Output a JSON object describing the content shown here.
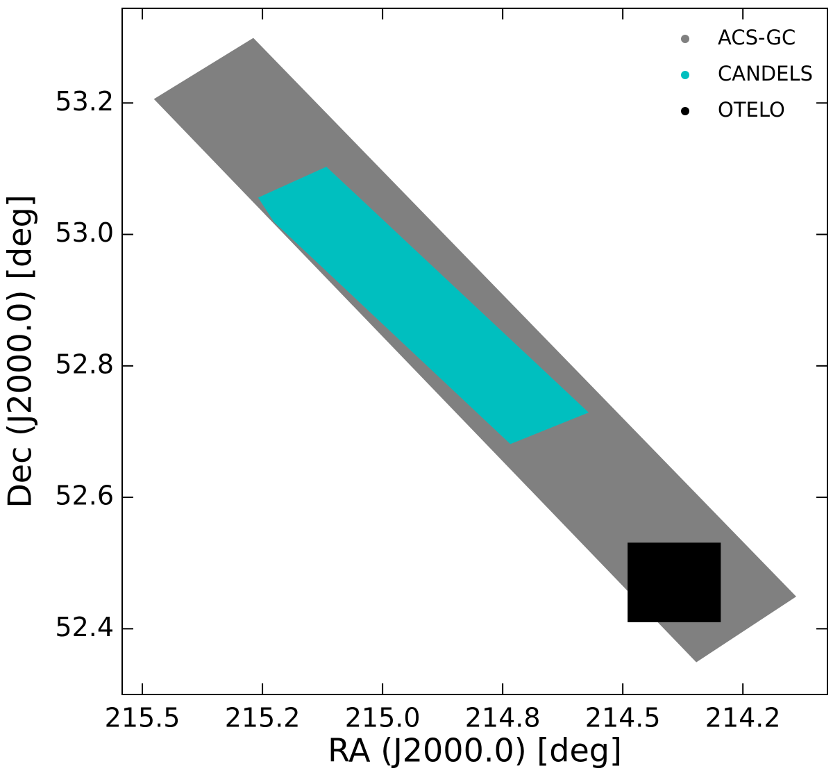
{
  "chart_data": {
    "type": "scatter",
    "xlabel": "RA (J2000.0) [deg]",
    "ylabel": "Dec (J2000.0) [deg]",
    "xlim": [
      215.542,
      214.074
    ],
    "ylim": [
      52.3,
      53.344
    ],
    "xticks": [
      215.5,
      {
        "value": 215.25,
        "label": "215.2"
      },
      {
        "value": 215,
        "label": "215.0"
      },
      {
        "value": 214.75,
        "label": "214.8"
      },
      214.5,
      {
        "value": 214.25,
        "label": "214.2"
      }
    ],
    "yticks": [
      52.4,
      52.6,
      52.8,
      {
        "value": 53,
        "label": "53.0"
      },
      53.2
    ],
    "legend": "upper right",
    "series": [
      {
        "name": "ACS-GC",
        "color": "#808080",
        "x": [
          215.476,
          215.269,
          214.139,
          214.347
        ],
        "y": [
          53.206,
          53.299,
          52.449,
          52.349
        ]
      },
      {
        "name": "CANDELS",
        "color": "#00bfbf",
        "x": [
          215.259,
          215.117,
          214.571,
          214.734,
          215.226
        ],
        "y": [
          53.056,
          53.103,
          52.729,
          52.681,
          53.019
        ]
      },
      {
        "name": "OTELO",
        "color": "#000000",
        "x": [
          214.49,
          214.296,
          214.296,
          214.49
        ],
        "y": [
          52.531,
          52.531,
          52.41,
          52.41
        ]
      }
    ]
  }
}
